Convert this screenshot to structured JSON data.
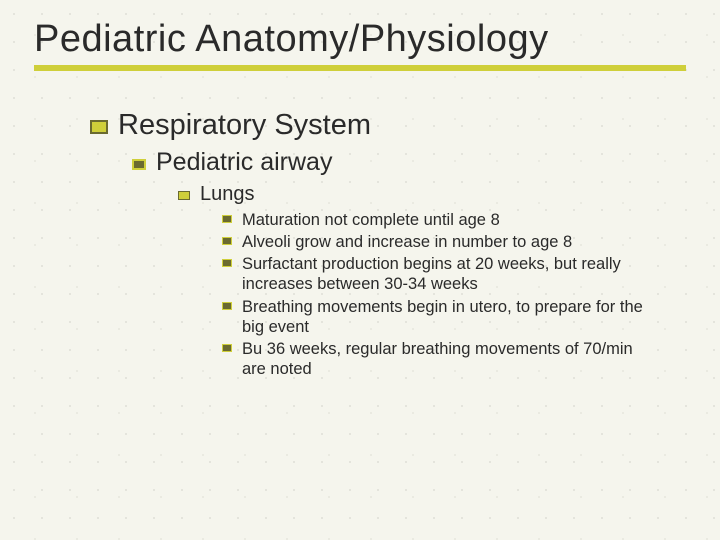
{
  "title": "Pediatric Anatomy/Physiology",
  "colors": {
    "background": "#f5f5ed",
    "accent": "#cfcf3a",
    "accent_dark": "#6a6a30",
    "text": "#2a2a2a"
  },
  "typography": {
    "family": "Verdana",
    "title_size": 38,
    "lvl1_size": 29,
    "lvl2_size": 25,
    "lvl3_size": 20,
    "lvl4_size": 16.5
  },
  "outline": {
    "lvl1": "Respiratory System",
    "lvl2": "Pediatric airway",
    "lvl3": "Lungs",
    "lvl4": [
      "Maturation not complete until age 8",
      "Alveoli grow and increase in number to age 8",
      "Surfactant production begins at 20 weeks, but really increases between 30-34 weeks",
      "Breathing movements begin in utero, to prepare for the big event",
      "Bu 36 weeks, regular breathing movements of 70/min are noted"
    ]
  }
}
